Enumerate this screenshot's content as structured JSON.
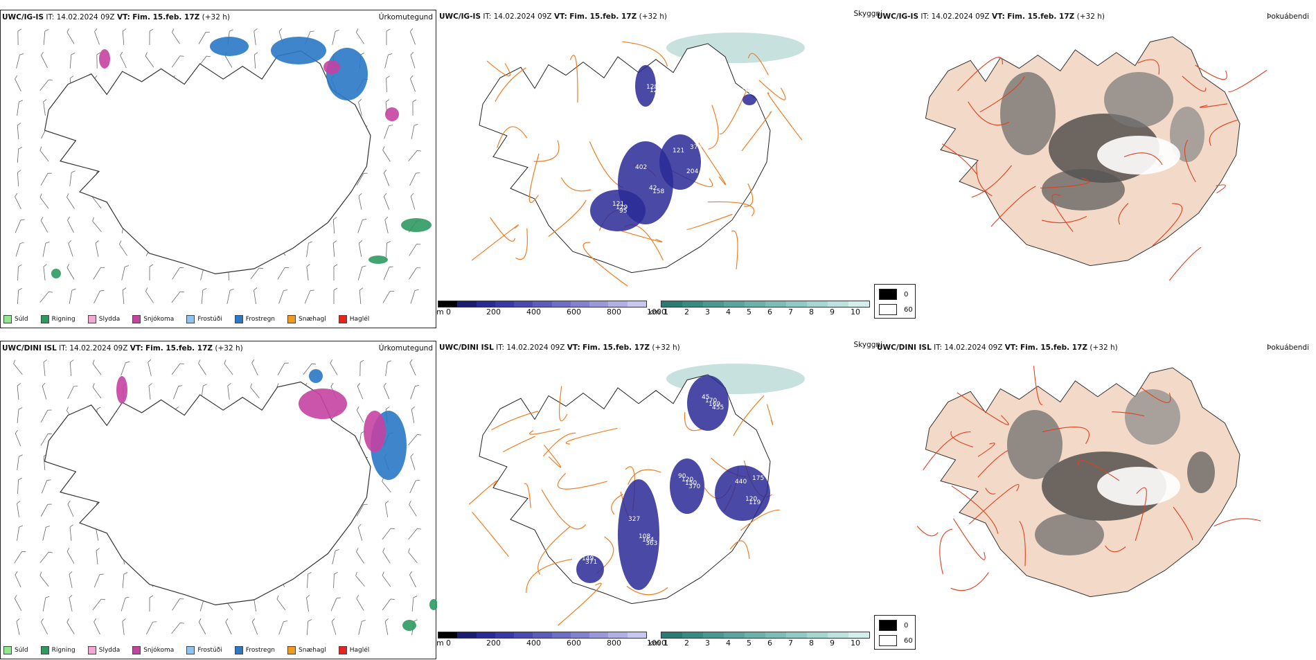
{
  "colors": {
    "land_beige": "#f3d9c7",
    "road_orange": "#ef7d22",
    "road_red": "#e0401d",
    "ceiling_blue": "#2a2a96",
    "vis_teal": "#5fa9a0",
    "snow_magenta": "#c443a2",
    "freezing_blue": "#2a78c6",
    "rain_green": "#2e9a60"
  },
  "rows": [
    {
      "model_label": "UWC/IG-IS",
      "it_prefix": "IT:",
      "it_value": "14.02.2024 09Z",
      "vt_prefix": "VT:",
      "vt_value": "Fim. 15.feb. 17Z",
      "lead": "(+32 h)",
      "precip_title": "Úrkomutegund",
      "cloud_title": "Skyggni",
      "fog_title": "Þokuábendi",
      "ceiling_labels": [
        "402",
        "95",
        "121",
        "121",
        "154",
        "158",
        "129",
        "376",
        "128",
        "124",
        "42",
        "121",
        "204"
      ],
      "vis_labels": []
    },
    {
      "model_label": "UWC/DINI ISL",
      "it_prefix": "IT:",
      "it_value": "14.02.2024 09Z",
      "vt_prefix": "VT:",
      "vt_value": "Fim. 15.feb. 17Z",
      "lead": "(+32 h)",
      "precip_title": "Úrkomutegund",
      "cloud_title": "Skyggni",
      "fog_title": "Þokuábendi",
      "ceiling_labels": [
        "327",
        "370",
        "440",
        "455",
        "371",
        "363",
        "150",
        "175",
        "169",
        "149",
        "164",
        "120",
        "119",
        "170",
        "124",
        "108",
        "90",
        "120",
        "45"
      ],
      "vis_labels": []
    }
  ],
  "precip_legend": [
    {
      "label": "Súld",
      "color": "#8ee88e"
    },
    {
      "label": "Rigning",
      "color": "#2e9a60"
    },
    {
      "label": "Slydda",
      "color": "#f5a6d4"
    },
    {
      "label": "Snjókoma",
      "color": "#c443a2"
    },
    {
      "label": "Frostúði",
      "color": "#8cc3f0"
    },
    {
      "label": "Frostregn",
      "color": "#2a78c6"
    },
    {
      "label": "Snæhagl",
      "color": "#f29a1e"
    },
    {
      "label": "Haglél",
      "color": "#e8221d"
    }
  ],
  "ceiling_scale": {
    "unit": "m",
    "ticks": [
      "0",
      "200",
      "400",
      "600",
      "800",
      "1000"
    ],
    "colors": [
      "#000000",
      "#1c1c70",
      "#2a2a96",
      "#3838a8",
      "#4a4ab2",
      "#5c5cbc",
      "#6e6ec6",
      "#8282d0",
      "#9898da",
      "#b0b0e4",
      "#c8c8ee"
    ]
  },
  "vis_scale": {
    "unit": "km",
    "ticks": [
      "1",
      "2",
      "3",
      "4",
      "5",
      "6",
      "7",
      "8",
      "9",
      "10"
    ],
    "colors": [
      "#2d7a72",
      "#3b8a82",
      "#4a9890",
      "#5aa69e",
      "#6ab2aa",
      "#7cbeb6",
      "#90cac4",
      "#a6d6d0",
      "#bde2de",
      "#d4eeeb"
    ]
  },
  "fog_legend": [
    {
      "label": "0",
      "color": "#000000"
    },
    {
      "label": "60",
      "color": "#ffffff"
    }
  ]
}
